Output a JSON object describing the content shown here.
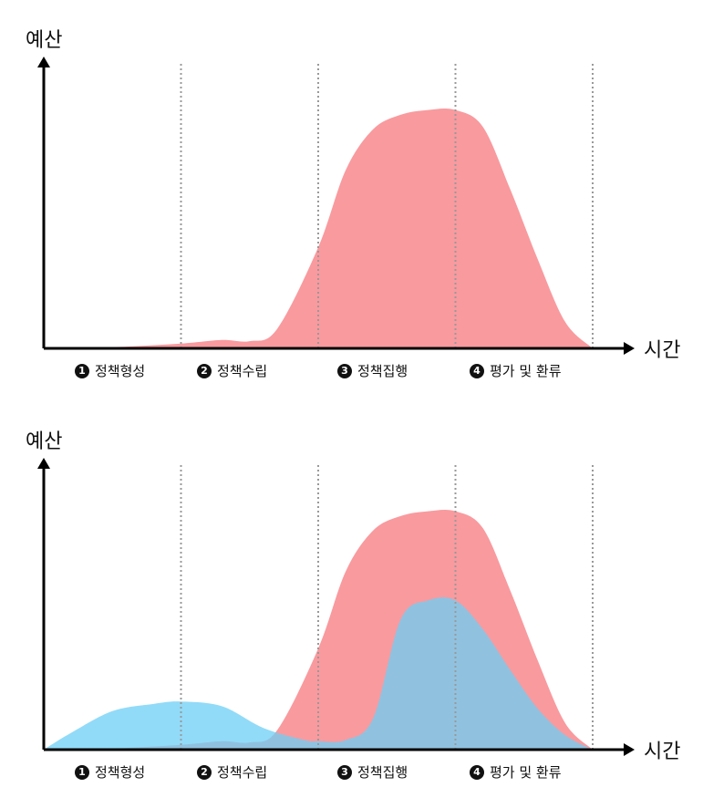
{
  "chart_data": [
    {
      "type": "area",
      "ylabel": "예산",
      "xlabel": "시간",
      "x_phases": [
        "정책형성",
        "정책수립",
        "정책집행",
        "평가 및 환류"
      ],
      "phase_numbers": [
        "1",
        "2",
        "3",
        "4"
      ],
      "xlim": [
        0,
        4
      ],
      "ylim": [
        0,
        1
      ],
      "grid": "vertical-dotted",
      "series": [
        {
          "color": "#f99a9e",
          "x": [
            0,
            0.5,
            1.0,
            1.3,
            1.5,
            1.7,
            2.0,
            2.2,
            2.4,
            2.6,
            2.8,
            3.0,
            3.2,
            3.4,
            3.6,
            3.8,
            4.0
          ],
          "values": [
            0,
            0.005,
            0.02,
            0.035,
            0.03,
            0.08,
            0.42,
            0.74,
            0.91,
            0.97,
            0.99,
            0.99,
            0.92,
            0.66,
            0.37,
            0.11,
            0
          ]
        }
      ]
    },
    {
      "type": "area",
      "ylabel": "예산",
      "xlabel": "시간",
      "x_phases": [
        "정책형성",
        "정책수립",
        "정책집행",
        "평가 및 환류"
      ],
      "phase_numbers": [
        "1",
        "2",
        "3",
        "4"
      ],
      "xlim": [
        0,
        4
      ],
      "ylim": [
        0,
        1
      ],
      "grid": "vertical-dotted",
      "series": [
        {
          "color": "#f99a9e",
          "x": [
            0,
            0.5,
            1.0,
            1.3,
            1.5,
            1.7,
            2.0,
            2.2,
            2.4,
            2.6,
            2.8,
            3.0,
            3.2,
            3.4,
            3.6,
            3.8,
            4.0
          ],
          "values": [
            0,
            0.005,
            0.02,
            0.035,
            0.03,
            0.08,
            0.42,
            0.74,
            0.91,
            0.97,
            0.99,
            0.99,
            0.92,
            0.66,
            0.37,
            0.11,
            0
          ]
        },
        {
          "color": "#6ccff6",
          "x": [
            0,
            0.2,
            0.5,
            0.8,
            1.0,
            1.3,
            1.6,
            1.9,
            2.0,
            2.2,
            2.4,
            2.6,
            2.8,
            3.0,
            3.2,
            3.4,
            3.6,
            3.8,
            4.0
          ],
          "values": [
            0,
            0.07,
            0.16,
            0.19,
            0.2,
            0.18,
            0.09,
            0.04,
            0.035,
            0.04,
            0.13,
            0.54,
            0.62,
            0.62,
            0.5,
            0.33,
            0.17,
            0.06,
            0
          ]
        }
      ]
    }
  ]
}
